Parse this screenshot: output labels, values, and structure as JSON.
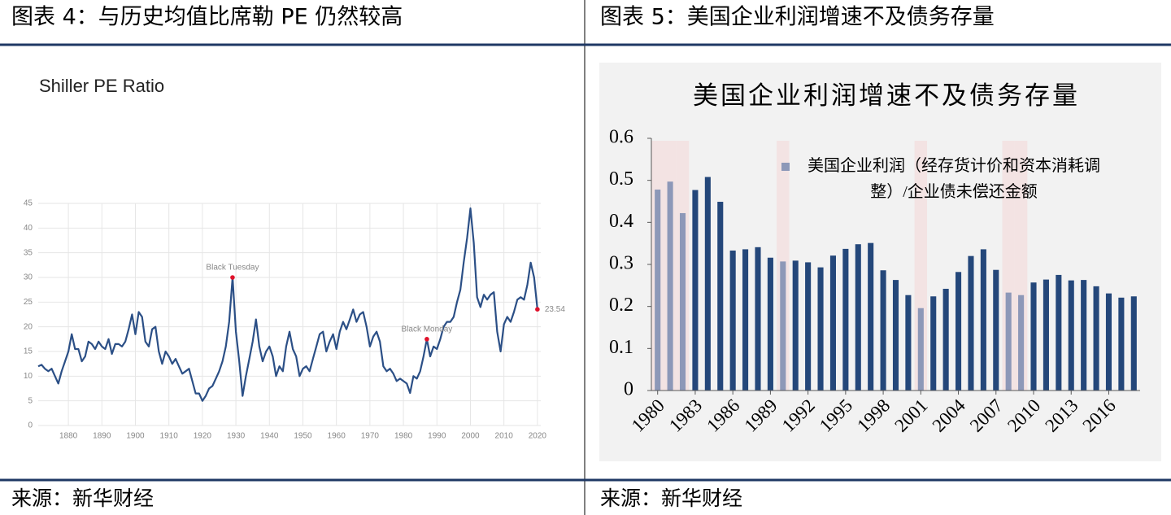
{
  "header": {
    "left": "图表 4：与历史均值比席勒 PE 仍然较高",
    "right": "图表 5：美国企业利润增速不及债务存量"
  },
  "footer": {
    "left": "来源：新华财经",
    "right": "来源：新华财经"
  },
  "chart_data": [
    {
      "type": "line",
      "title": "Shiller PE Ratio",
      "color": "#2b4f86",
      "grid": true,
      "x": [
        1871,
        1872,
        1873,
        1874,
        1875,
        1876,
        1877,
        1878,
        1879,
        1880,
        1881,
        1882,
        1883,
        1884,
        1885,
        1886,
        1887,
        1888,
        1889,
        1890,
        1891,
        1892,
        1893,
        1894,
        1895,
        1896,
        1897,
        1898,
        1899,
        1900,
        1901,
        1902,
        1903,
        1904,
        1905,
        1906,
        1907,
        1908,
        1909,
        1910,
        1911,
        1912,
        1913,
        1914,
        1915,
        1916,
        1917,
        1918,
        1919,
        1920,
        1921,
        1922,
        1923,
        1924,
        1925,
        1926,
        1927,
        1928,
        1929,
        1930,
        1931,
        1932,
        1933,
        1934,
        1935,
        1936,
        1937,
        1938,
        1939,
        1940,
        1941,
        1942,
        1943,
        1944,
        1945,
        1946,
        1947,
        1948,
        1949,
        1950,
        1951,
        1952,
        1953,
        1954,
        1955,
        1956,
        1957,
        1958,
        1959,
        1960,
        1961,
        1962,
        1963,
        1964,
        1965,
        1966,
        1967,
        1968,
        1969,
        1970,
        1971,
        1972,
        1973,
        1974,
        1975,
        1976,
        1977,
        1978,
        1979,
        1980,
        1981,
        1982,
        1983,
        1984,
        1985,
        1986,
        1987,
        1988,
        1989,
        1990,
        1991,
        1992,
        1993,
        1994,
        1995,
        1996,
        1997,
        1998,
        1999,
        2000,
        2001,
        2002,
        2003,
        2004,
        2005,
        2006,
        2007,
        2008,
        2009,
        2010,
        2011,
        2012,
        2013,
        2014,
        2015,
        2016,
        2017,
        2018,
        2019,
        2020
      ],
      "values": [
        12,
        12.3,
        11.5,
        11,
        11.5,
        10,
        8.5,
        11,
        13,
        15,
        18.5,
        15.5,
        15.5,
        13,
        14,
        17,
        16.5,
        15.5,
        17,
        16,
        15.5,
        17.5,
        14.5,
        16.5,
        16.5,
        16,
        17,
        19.5,
        22.5,
        18.5,
        23,
        22,
        17,
        16,
        19.5,
        20,
        15,
        12.5,
        15,
        14,
        12.5,
        13.5,
        12,
        10.5,
        11,
        11.5,
        9,
        6.5,
        6.5,
        5,
        6,
        7.5,
        8,
        9.5,
        11,
        13,
        16,
        21,
        30,
        19,
        13,
        6,
        10,
        13.5,
        17,
        21.5,
        16,
        13,
        15,
        16,
        14,
        10,
        12,
        11,
        16,
        19,
        15.5,
        14,
        10,
        11.5,
        12,
        11,
        13.5,
        16,
        18.5,
        19,
        15,
        17,
        18.5,
        15.5,
        19,
        21,
        19.5,
        21.5,
        23.5,
        21,
        22.5,
        23,
        20,
        16,
        18,
        19,
        17,
        12,
        11,
        11.5,
        10.5,
        9,
        9.5,
        9,
        8.5,
        6.6,
        10,
        9.5,
        11,
        14,
        17.5,
        14,
        16,
        15.5,
        17.5,
        20,
        21,
        21,
        22,
        25,
        27.5,
        33,
        38,
        44,
        37,
        26,
        24,
        26.5,
        25.5,
        26.5,
        27,
        19,
        15,
        20.5,
        22,
        21,
        23,
        25.5,
        26,
        25.5,
        28.5,
        33,
        30,
        23.54
      ],
      "xlim": [
        1871,
        2021
      ],
      "xticks": [
        1880,
        1890,
        1900,
        1910,
        1920,
        1930,
        1940,
        1950,
        1960,
        1970,
        1980,
        1990,
        2000,
        2010,
        2020
      ],
      "ylim": [
        0,
        45
      ],
      "yticks": [
        0,
        5,
        10,
        15,
        20,
        25,
        30,
        35,
        40,
        45
      ],
      "annotations": [
        {
          "label": "Black Tuesday",
          "x": 1929,
          "value": 30
        },
        {
          "label": "Black Monday",
          "x": 1987,
          "value": 17.5
        },
        {
          "x": 2020,
          "value": 23.54
        }
      ],
      "annotation_color": "#e0102a"
    },
    {
      "type": "bar",
      "title": "美国企业利润增速不及债务存量",
      "categories": [
        "1980",
        null,
        null,
        "1983",
        null,
        null,
        "1986",
        null,
        null,
        "1989",
        null,
        null,
        "1992",
        null,
        null,
        "1995",
        null,
        null,
        "1998",
        null,
        null,
        "2001",
        null,
        null,
        "2004",
        null,
        null,
        "2007",
        null,
        null,
        "2010",
        null,
        null,
        "2013",
        null,
        null,
        "2016",
        null,
        null
      ],
      "series": [
        {
          "name": "美国企业利润（经存货计价和资本消耗调整）/企业债未偿还金额",
          "color": "#8d98b8",
          "values": [
            0.478,
            0.497,
            0.422,
            0.477,
            0.508,
            0.449,
            0.333,
            0.336,
            0.341,
            0.316,
            0.307,
            0.309,
            0.305,
            0.293,
            0.321,
            0.337,
            0.348,
            0.351,
            0.286,
            0.263,
            0.227,
            0.196,
            0.224,
            0.242,
            0.282,
            0.32,
            0.336,
            0.287,
            0.233,
            0.227,
            0.257,
            0.264,
            0.275,
            0.262,
            0.263,
            0.248,
            0.231,
            0.221,
            0.224
          ]
        }
      ],
      "bar_colors": [
        "#8d98b8",
        "#8d98b8",
        "#8d98b8",
        "#24477a",
        "#24477a",
        "#24477a",
        "#24477a",
        "#24477a",
        "#24477a",
        "#24477a",
        "#8d98b8",
        "#24477a",
        "#24477a",
        "#24477a",
        "#24477a",
        "#24477a",
        "#24477a",
        "#24477a",
        "#24477a",
        "#24477a",
        "#24477a",
        "#8d98b8",
        "#24477a",
        "#24477a",
        "#24477a",
        "#24477a",
        "#24477a",
        "#24477a",
        "#8d98b8",
        "#8d98b8",
        "#24477a",
        "#24477a",
        "#24477a",
        "#24477a",
        "#24477a",
        "#24477a",
        "#24477a",
        "#24477a",
        "#24477a"
      ],
      "shaded": [
        0,
        1,
        2,
        10,
        21,
        28,
        29
      ],
      "shade_color": "#f3e3e3",
      "ylim": [
        0,
        0.6
      ],
      "yticks": [
        0,
        0.1,
        0.2,
        0.3,
        0.4,
        0.5,
        0.6
      ],
      "grid": false
    }
  ]
}
